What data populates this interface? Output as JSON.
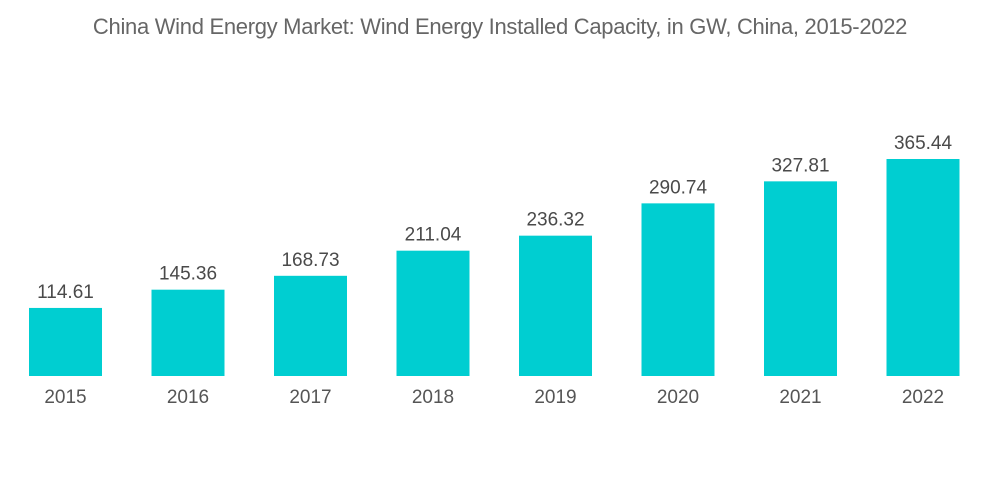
{
  "chart_data": {
    "type": "bar",
    "title": "China Wind Energy Market: Wind Energy Installed Capacity, in GW, China, 2015-2022",
    "xlabel": "",
    "ylabel": "",
    "categories": [
      "2015",
      "2016",
      "2017",
      "2018",
      "2019",
      "2020",
      "2021",
      "2022"
    ],
    "values": [
      114.61,
      145.36,
      168.73,
      211.04,
      236.32,
      290.74,
      327.81,
      365.44
    ],
    "value_labels": [
      "114.61",
      "145.36",
      "168.73",
      "211.04",
      "236.32",
      "290.74",
      "327.81",
      "365.44"
    ],
    "ylim": [
      0,
      365.44
    ],
    "grid": false,
    "legend": "none",
    "bar_color": "#00ced1"
  }
}
